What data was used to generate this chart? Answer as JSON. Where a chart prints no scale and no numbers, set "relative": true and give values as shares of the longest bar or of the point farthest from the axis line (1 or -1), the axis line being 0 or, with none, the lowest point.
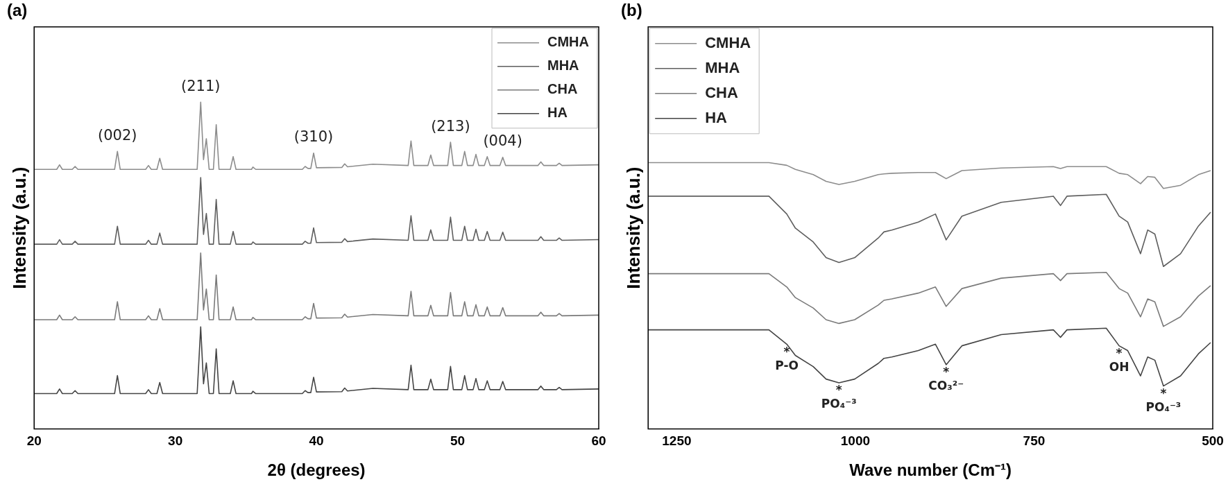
{
  "chart_data": [
    {
      "type": "line",
      "title": "(a)",
      "xlabel": "2θ (degrees)",
      "ylabel": "Intensity (a.u.)",
      "relative": true,
      "grid": false,
      "legend": "top right",
      "marker": "none",
      "line_style": "solid",
      "xlim": [
        20,
        60
      ],
      "xticks": [
        20,
        30,
        40,
        50,
        60
      ],
      "x": [
        20,
        21.6,
        21.8,
        22,
        22.7,
        22.9,
        23.1,
        25.7,
        25.9,
        26.1,
        27.9,
        28.1,
        28.3,
        28.7,
        28.9,
        29.1,
        31.55,
        31.8,
        32,
        32.2,
        32.4,
        32.7,
        32.9,
        33.1,
        33.9,
        34.1,
        34.3,
        35.4,
        35.5,
        35.7,
        39,
        39.2,
        39.4,
        39.6,
        39.8,
        40,
        41.8,
        42,
        42.2,
        44,
        46.5,
        46.7,
        46.9,
        47.9,
        48.1,
        48.3,
        49.3,
        49.5,
        49.7,
        50.3,
        50.5,
        50.7,
        51.1,
        51.3,
        51.5,
        51.9,
        52.1,
        52.3,
        53,
        53.2,
        53.4,
        55.7,
        55.9,
        56.1,
        57,
        57.2,
        57.4,
        60
      ],
      "series": [
        {
          "name": "CMHA",
          "color": "#8c8c8c",
          "values": [
            0.794,
            0.794,
            0.808,
            0.794,
            0.794,
            0.803,
            0.794,
            0.794,
            0.849,
            0.794,
            0.794,
            0.806,
            0.794,
            0.794,
            0.828,
            0.794,
            0.794,
            1,
            0.824,
            0.888,
            0.794,
            0.794,
            0.931,
            0.794,
            0.794,
            0.833,
            0.794,
            0.794,
            0.801,
            0.794,
            0.794,
            0.803,
            0.797,
            0.797,
            0.844,
            0.799,
            0.8,
            0.811,
            0.802,
            0.81,
            0.806,
            0.881,
            0.806,
            0.806,
            0.838,
            0.806,
            0.806,
            0.877,
            0.806,
            0.806,
            0.849,
            0.806,
            0.806,
            0.84,
            0.806,
            0.806,
            0.833,
            0.806,
            0.806,
            0.831,
            0.806,
            0.806,
            0.817,
            0.806,
            0.806,
            0.813,
            0.806,
            0.808
          ]
        },
        {
          "name": "MHA",
          "color": "#5e5e5e",
          "values": [
            0.565,
            0.565,
            0.579,
            0.565,
            0.565,
            0.574,
            0.565,
            0.565,
            0.62,
            0.565,
            0.565,
            0.577,
            0.565,
            0.565,
            0.599,
            0.565,
            0.565,
            0.769,
            0.595,
            0.659,
            0.565,
            0.565,
            0.702,
            0.565,
            0.565,
            0.604,
            0.565,
            0.565,
            0.572,
            0.565,
            0.565,
            0.574,
            0.568,
            0.568,
            0.615,
            0.57,
            0.571,
            0.582,
            0.573,
            0.581,
            0.577,
            0.652,
            0.577,
            0.577,
            0.609,
            0.577,
            0.577,
            0.648,
            0.577,
            0.577,
            0.62,
            0.577,
            0.577,
            0.611,
            0.577,
            0.577,
            0.604,
            0.577,
            0.577,
            0.602,
            0.577,
            0.577,
            0.588,
            0.577,
            0.577,
            0.584,
            0.577,
            0.579
          ]
        },
        {
          "name": "CHA",
          "color": "#7a7a7a",
          "values": [
            0.334,
            0.334,
            0.348,
            0.334,
            0.334,
            0.343,
            0.334,
            0.334,
            0.389,
            0.334,
            0.334,
            0.346,
            0.334,
            0.334,
            0.368,
            0.334,
            0.334,
            0.538,
            0.364,
            0.428,
            0.334,
            0.334,
            0.471,
            0.334,
            0.334,
            0.373,
            0.334,
            0.334,
            0.341,
            0.334,
            0.334,
            0.343,
            0.337,
            0.337,
            0.384,
            0.339,
            0.34,
            0.351,
            0.342,
            0.35,
            0.346,
            0.421,
            0.346,
            0.346,
            0.378,
            0.346,
            0.346,
            0.417,
            0.346,
            0.346,
            0.389,
            0.346,
            0.346,
            0.38,
            0.346,
            0.346,
            0.373,
            0.346,
            0.346,
            0.371,
            0.346,
            0.346,
            0.357,
            0.346,
            0.346,
            0.353,
            0.346,
            0.348
          ]
        },
        {
          "name": "HA",
          "color": "#444444",
          "values": [
            0.108,
            0.108,
            0.122,
            0.108,
            0.108,
            0.117,
            0.108,
            0.108,
            0.163,
            0.108,
            0.108,
            0.12,
            0.108,
            0.108,
            0.142,
            0.108,
            0.108,
            0.312,
            0.138,
            0.202,
            0.108,
            0.108,
            0.245,
            0.108,
            0.108,
            0.147,
            0.108,
            0.108,
            0.115,
            0.108,
            0.108,
            0.117,
            0.111,
            0.111,
            0.158,
            0.113,
            0.114,
            0.125,
            0.116,
            0.124,
            0.12,
            0.195,
            0.12,
            0.12,
            0.152,
            0.12,
            0.12,
            0.191,
            0.12,
            0.12,
            0.163,
            0.12,
            0.12,
            0.154,
            0.12,
            0.12,
            0.147,
            0.12,
            0.12,
            0.145,
            0.12,
            0.12,
            0.131,
            0.12,
            0.12,
            0.127,
            0.12,
            0.122
          ]
        }
      ],
      "annotations": [
        {
          "text": "(002)",
          "x": 25.9,
          "y": 0.849
        },
        {
          "text": "(211)",
          "x": 31.8,
          "y": 1
        },
        {
          "text": "(310)",
          "x": 39.8,
          "y": 0.844
        },
        {
          "text": "(213)",
          "x": 49.5,
          "y": 0.877
        },
        {
          "text": "(004)",
          "x": 53.2,
          "y": 0.831
        }
      ]
    },
    {
      "type": "line",
      "title": "(b)",
      "xlabel": "Wave number (Cm⁻¹)",
      "ylabel": "Intensity (a.u.)",
      "relative": true,
      "grid": false,
      "legend": "top left",
      "marker": "none",
      "line_style": "solid",
      "xlim": [
        1290,
        500
      ],
      "xticks": [
        1250,
        1000,
        750,
        500
      ],
      "x": [
        1290,
        1121,
        1096,
        1084,
        1059,
        1041,
        1023,
        1001,
        968,
        960,
        949,
        912,
        888,
        873,
        851,
        796,
        723,
        713,
        704,
        649,
        631,
        619,
        601,
        591,
        581,
        569,
        545,
        520,
        503
      ],
      "series": [
        {
          "name": "CMHA",
          "color": "#8c8c8c",
          "values": [
            1,
            1,
            0.99,
            0.975,
            0.955,
            0.93,
            0.918,
            0.93,
            0.955,
            0.958,
            0.96,
            0.963,
            0.963,
            0.94,
            0.97,
            0.98,
            0.985,
            0.978,
            0.985,
            0.985,
            0.96,
            0.955,
            0.921,
            0.948,
            0.945,
            0.903,
            0.915,
            0.955,
            0.97
          ]
        },
        {
          "name": "MHA",
          "color": "#5e5e5e",
          "values": [
            0.874,
            0.874,
            0.807,
            0.754,
            0.702,
            0.643,
            0.625,
            0.643,
            0.717,
            0.74,
            0.747,
            0.777,
            0.807,
            0.71,
            0.799,
            0.851,
            0.874,
            0.839,
            0.874,
            0.881,
            0.799,
            0.777,
            0.658,
            0.747,
            0.732,
            0.61,
            0.658,
            0.762,
            0.814
          ]
        },
        {
          "name": "CHA",
          "color": "#7a7a7a",
          "values": [
            0.583,
            0.583,
            0.533,
            0.493,
            0.454,
            0.41,
            0.396,
            0.41,
            0.465,
            0.483,
            0.488,
            0.51,
            0.533,
            0.46,
            0.527,
            0.566,
            0.583,
            0.557,
            0.583,
            0.588,
            0.527,
            0.51,
            0.421,
            0.488,
            0.477,
            0.385,
            0.421,
            0.499,
            0.538
          ]
        },
        {
          "name": "HA",
          "color": "#444444",
          "values": [
            0.372,
            0.372,
            0.318,
            0.276,
            0.234,
            0.187,
            0.173,
            0.187,
            0.246,
            0.265,
            0.27,
            0.294,
            0.318,
            0.241,
            0.312,
            0.354,
            0.372,
            0.344,
            0.372,
            0.378,
            0.312,
            0.294,
            0.199,
            0.27,
            0.258,
            0.161,
            0.199,
            0.282,
            0.324
          ]
        }
      ],
      "annotations": [
        {
          "text": "*",
          "x": 1096,
          "y": 0.318
        },
        {
          "text": "P-O",
          "x": 1096,
          "y": 0.318
        },
        {
          "text": "*",
          "x": 1023,
          "y": 0.173
        },
        {
          "text": "PO₄⁻³",
          "x": 1023,
          "y": 0.173
        },
        {
          "text": "*",
          "x": 873,
          "y": 0.241
        },
        {
          "text": "CO₃²⁻",
          "x": 873,
          "y": 0.241
        },
        {
          "text": "*",
          "x": 631,
          "y": 0.312
        },
        {
          "text": "OH",
          "x": 631,
          "y": 0.312
        },
        {
          "text": "*",
          "x": 569,
          "y": 0.161
        },
        {
          "text": "PO₄⁻³",
          "x": 569,
          "y": 0.161
        }
      ]
    }
  ]
}
